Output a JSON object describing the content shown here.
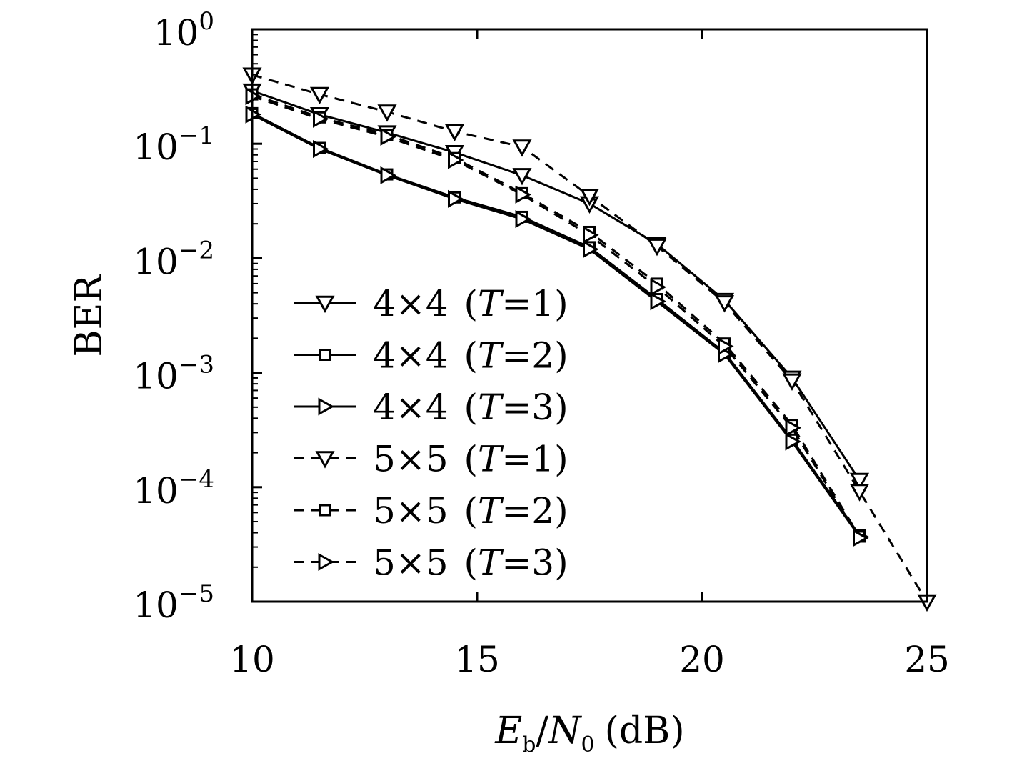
{
  "chart_data": {
    "type": "line",
    "title": "",
    "xlabel": "E_b/N_0 (dB)",
    "xlabel_parts": {
      "E": "E",
      "b": "b",
      "slash": "/",
      "N": "N",
      "zero": "0",
      "unit": "(dB)"
    },
    "ylabel": "BER",
    "x_scale": "linear",
    "y_scale": "log",
    "xlim": [
      10,
      25
    ],
    "ylim": [
      1e-05,
      1
    ],
    "x_ticks": [
      {
        "value": 10,
        "label": "10"
      },
      {
        "value": 15,
        "label": "15"
      },
      {
        "value": 20,
        "label": "20"
      },
      {
        "value": 25,
        "label": "25"
      }
    ],
    "y_ticks": [
      {
        "value": 1,
        "base": "10",
        "exp": "0"
      },
      {
        "value": 0.1,
        "base": "10",
        "exp": "−1"
      },
      {
        "value": 0.01,
        "base": "10",
        "exp": "−2"
      },
      {
        "value": 0.001,
        "base": "10",
        "exp": "−3"
      },
      {
        "value": 0.0001,
        "base": "10",
        "exp": "−4"
      },
      {
        "value": 1e-05,
        "base": "10",
        "exp": "−5"
      }
    ],
    "grid": false,
    "legend_position": "lower-left",
    "series": [
      {
        "name": "4×4 (T=1)",
        "legend": {
          "dim": "4×4",
          "open": "(",
          "T": "T",
          "eq": "=1",
          "close": ")"
        },
        "marker": "triangle-down",
        "dash": "solid",
        "x": [
          10,
          11.5,
          13,
          14.5,
          16,
          17.5,
          19,
          20.5,
          22,
          23.5
        ],
        "y": [
          0.29,
          0.18,
          0.125,
          0.084,
          0.053,
          0.03,
          0.0133,
          0.0043,
          0.0009,
          0.000115
        ]
      },
      {
        "name": "4×4 (T=2)",
        "legend": {
          "dim": "4×4",
          "open": "(",
          "T": "T",
          "eq": "=2",
          "close": ")"
        },
        "marker": "square",
        "dash": "solid",
        "x": [
          10,
          11.5,
          13,
          14.5,
          16,
          17.5,
          19,
          20.5,
          22,
          23.5
        ],
        "y": [
          0.185,
          0.092,
          0.054,
          0.034,
          0.023,
          0.0125,
          0.0044,
          0.0015,
          0.00026,
          3.8e-05
        ]
      },
      {
        "name": "4×4 (T=3)",
        "legend": {
          "dim": "4×4",
          "open": "(",
          "T": "T",
          "eq": "=3",
          "close": ")"
        },
        "marker": "triangle-right",
        "dash": "solid",
        "x": [
          10,
          11.5,
          13,
          14.5,
          16,
          17.5,
          19,
          20.5,
          22,
          23.5
        ],
        "y": [
          0.18,
          0.09,
          0.053,
          0.033,
          0.022,
          0.012,
          0.0042,
          0.00145,
          0.00025,
          3.7e-05
        ]
      },
      {
        "name": "5×5 (T=1)",
        "legend": {
          "dim": "5×5",
          "open": "(",
          "T": "T",
          "eq": "=1",
          "close": ")"
        },
        "marker": "triangle-down",
        "dash": "dashed",
        "x": [
          10,
          11.5,
          13,
          14.5,
          16,
          17.5,
          19,
          20.5,
          22,
          23.5,
          25
        ],
        "y": [
          0.4,
          0.27,
          0.19,
          0.128,
          0.094,
          0.035,
          0.0128,
          0.0041,
          0.00085,
          9.2e-05,
          1e-05
        ]
      },
      {
        "name": "5×5 (T=2)",
        "legend": {
          "dim": "5×5",
          "open": "(",
          "T": "T",
          "eq": "=2",
          "close": ")"
        },
        "marker": "square",
        "dash": "dashed",
        "x": [
          10,
          11.5,
          13,
          14.5,
          16,
          17.5,
          19,
          20.5,
          22,
          23.5
        ],
        "y": [
          0.27,
          0.17,
          0.12,
          0.075,
          0.037,
          0.017,
          0.006,
          0.0018,
          0.00035,
          3.7e-05
        ]
      },
      {
        "name": "5×5 (T=3)",
        "legend": {
          "dim": "5×5",
          "open": "(",
          "T": "T",
          "eq": "=3",
          "close": ")"
        },
        "marker": "triangle-right",
        "dash": "dashed",
        "x": [
          10,
          11.5,
          13,
          14.5,
          16,
          17.5,
          19,
          20.5,
          22,
          23.5
        ],
        "y": [
          0.26,
          0.165,
          0.115,
          0.072,
          0.036,
          0.016,
          0.0056,
          0.0017,
          0.00033,
          3.6e-05
        ]
      }
    ]
  }
}
